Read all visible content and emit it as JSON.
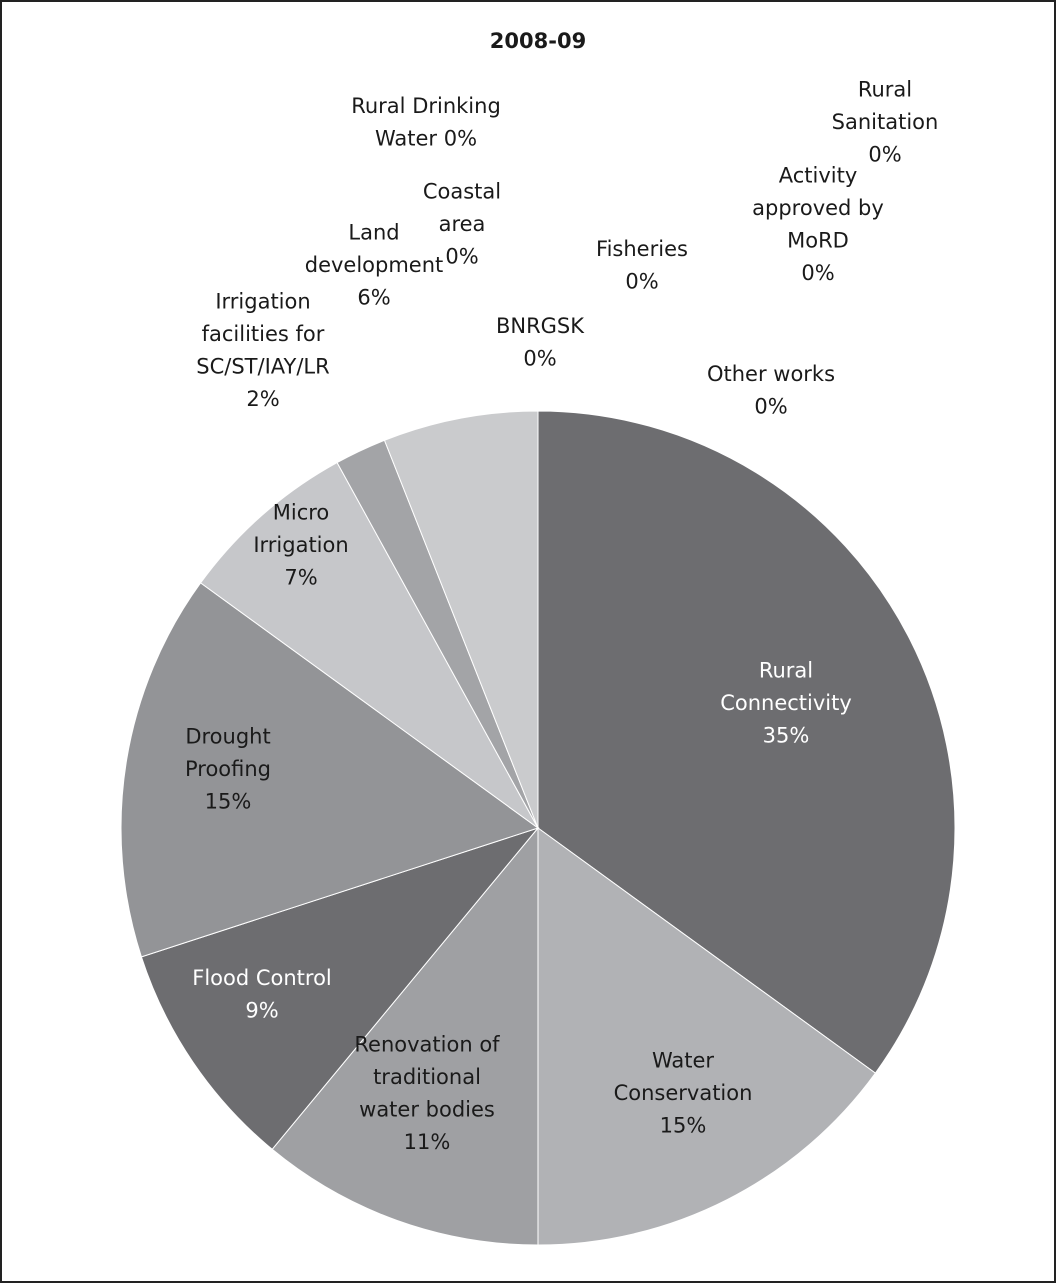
{
  "chart_data": {
    "type": "pie",
    "title": "2008-09",
    "slices": [
      {
        "category": "Rural Connectivity",
        "value": 35,
        "value_label": "35%",
        "color": "#6d6d70"
      },
      {
        "category": "Water Conservation",
        "value": 15,
        "value_label": "15%",
        "color": "#b1b2b5"
      },
      {
        "category": "Renovation of traditional water bodies",
        "value": 11,
        "value_label": "11%",
        "color": "#9fa0a3"
      },
      {
        "category": "Flood Control",
        "value": 9,
        "value_label": "9%",
        "color": "#6d6d70"
      },
      {
        "category": "Drought Proofing",
        "value": 15,
        "value_label": "15%",
        "color": "#939497"
      },
      {
        "category": "Micro Irrigation",
        "value": 7,
        "value_label": "7%",
        "color": "#c6c7ca"
      },
      {
        "category": "Irrigation facilities for SC/ST/IAY/LR",
        "value": 2,
        "value_label": "2%",
        "color": "#a3a4a7"
      },
      {
        "category": "Land development",
        "value": 6,
        "value_label": "6%",
        "color": "#cacbcd"
      },
      {
        "category": "Coastal area",
        "value": 0,
        "value_label": "0%",
        "color": "#cacbcd"
      },
      {
        "category": "Rural Drinking Water",
        "value": 0,
        "value_label": "0%",
        "color": "#cacbcd"
      },
      {
        "category": "BNRGSK",
        "value": 0,
        "value_label": "0%",
        "color": "#cacbcd"
      },
      {
        "category": "Fisheries",
        "value": 0,
        "value_label": "0%",
        "color": "#cacbcd"
      },
      {
        "category": "Rural Sanitation",
        "value": 0,
        "value_label": "0%",
        "color": "#cacbcd"
      },
      {
        "category": "Activity approved by MoRD",
        "value": 0,
        "value_label": "0%",
        "color": "#cacbcd"
      },
      {
        "category": "Other works",
        "value": 0,
        "value_label": "0%",
        "color": "#cacbcd"
      }
    ],
    "labels": [
      {
        "lines": [
          "Rural",
          "Connectivity",
          "35%"
        ],
        "text_color": "#ffffff"
      },
      {
        "lines": [
          "Water",
          "Conservation",
          "15%"
        ],
        "text_color": "#1a1a1a"
      },
      {
        "lines": [
          "Renovation of",
          "traditional",
          "water bodies",
          "11%"
        ],
        "text_color": "#1a1a1a"
      },
      {
        "lines": [
          "Flood Control",
          "9%"
        ],
        "text_color": "#ffffff"
      },
      {
        "lines": [
          "Drought",
          "Proofing",
          "15%"
        ],
        "text_color": "#1a1a1a"
      },
      {
        "lines": [
          "Micro",
          "Irrigation",
          "7%"
        ],
        "text_color": "#1a1a1a"
      },
      {
        "lines": [
          "Irrigation",
          "facilities for",
          "SC/ST/IAY/LR",
          "2%"
        ],
        "text_color": "#1a1a1a"
      },
      {
        "lines": [
          "Land",
          "development",
          "6%"
        ],
        "text_color": "#1a1a1a"
      },
      {
        "lines": [
          "Coastal",
          "area",
          "0%"
        ],
        "text_color": "#1a1a1a"
      },
      {
        "lines": [
          "Rural Drinking",
          "Water 0%"
        ],
        "text_color": "#1a1a1a"
      },
      {
        "lines": [
          "BNRGSK",
          "0%"
        ],
        "text_color": "#1a1a1a"
      },
      {
        "lines": [
          "Fisheries",
          "0%"
        ],
        "text_color": "#1a1a1a"
      },
      {
        "lines": [
          "Rural",
          "Sanitation",
          "0%"
        ],
        "text_color": "#1a1a1a"
      },
      {
        "lines": [
          "Activity",
          "approved by",
          "MoRD",
          "0%"
        ],
        "text_color": "#1a1a1a"
      },
      {
        "lines": [
          "Other works",
          "0%"
        ],
        "text_color": "#1a1a1a"
      }
    ],
    "legend": "none"
  }
}
